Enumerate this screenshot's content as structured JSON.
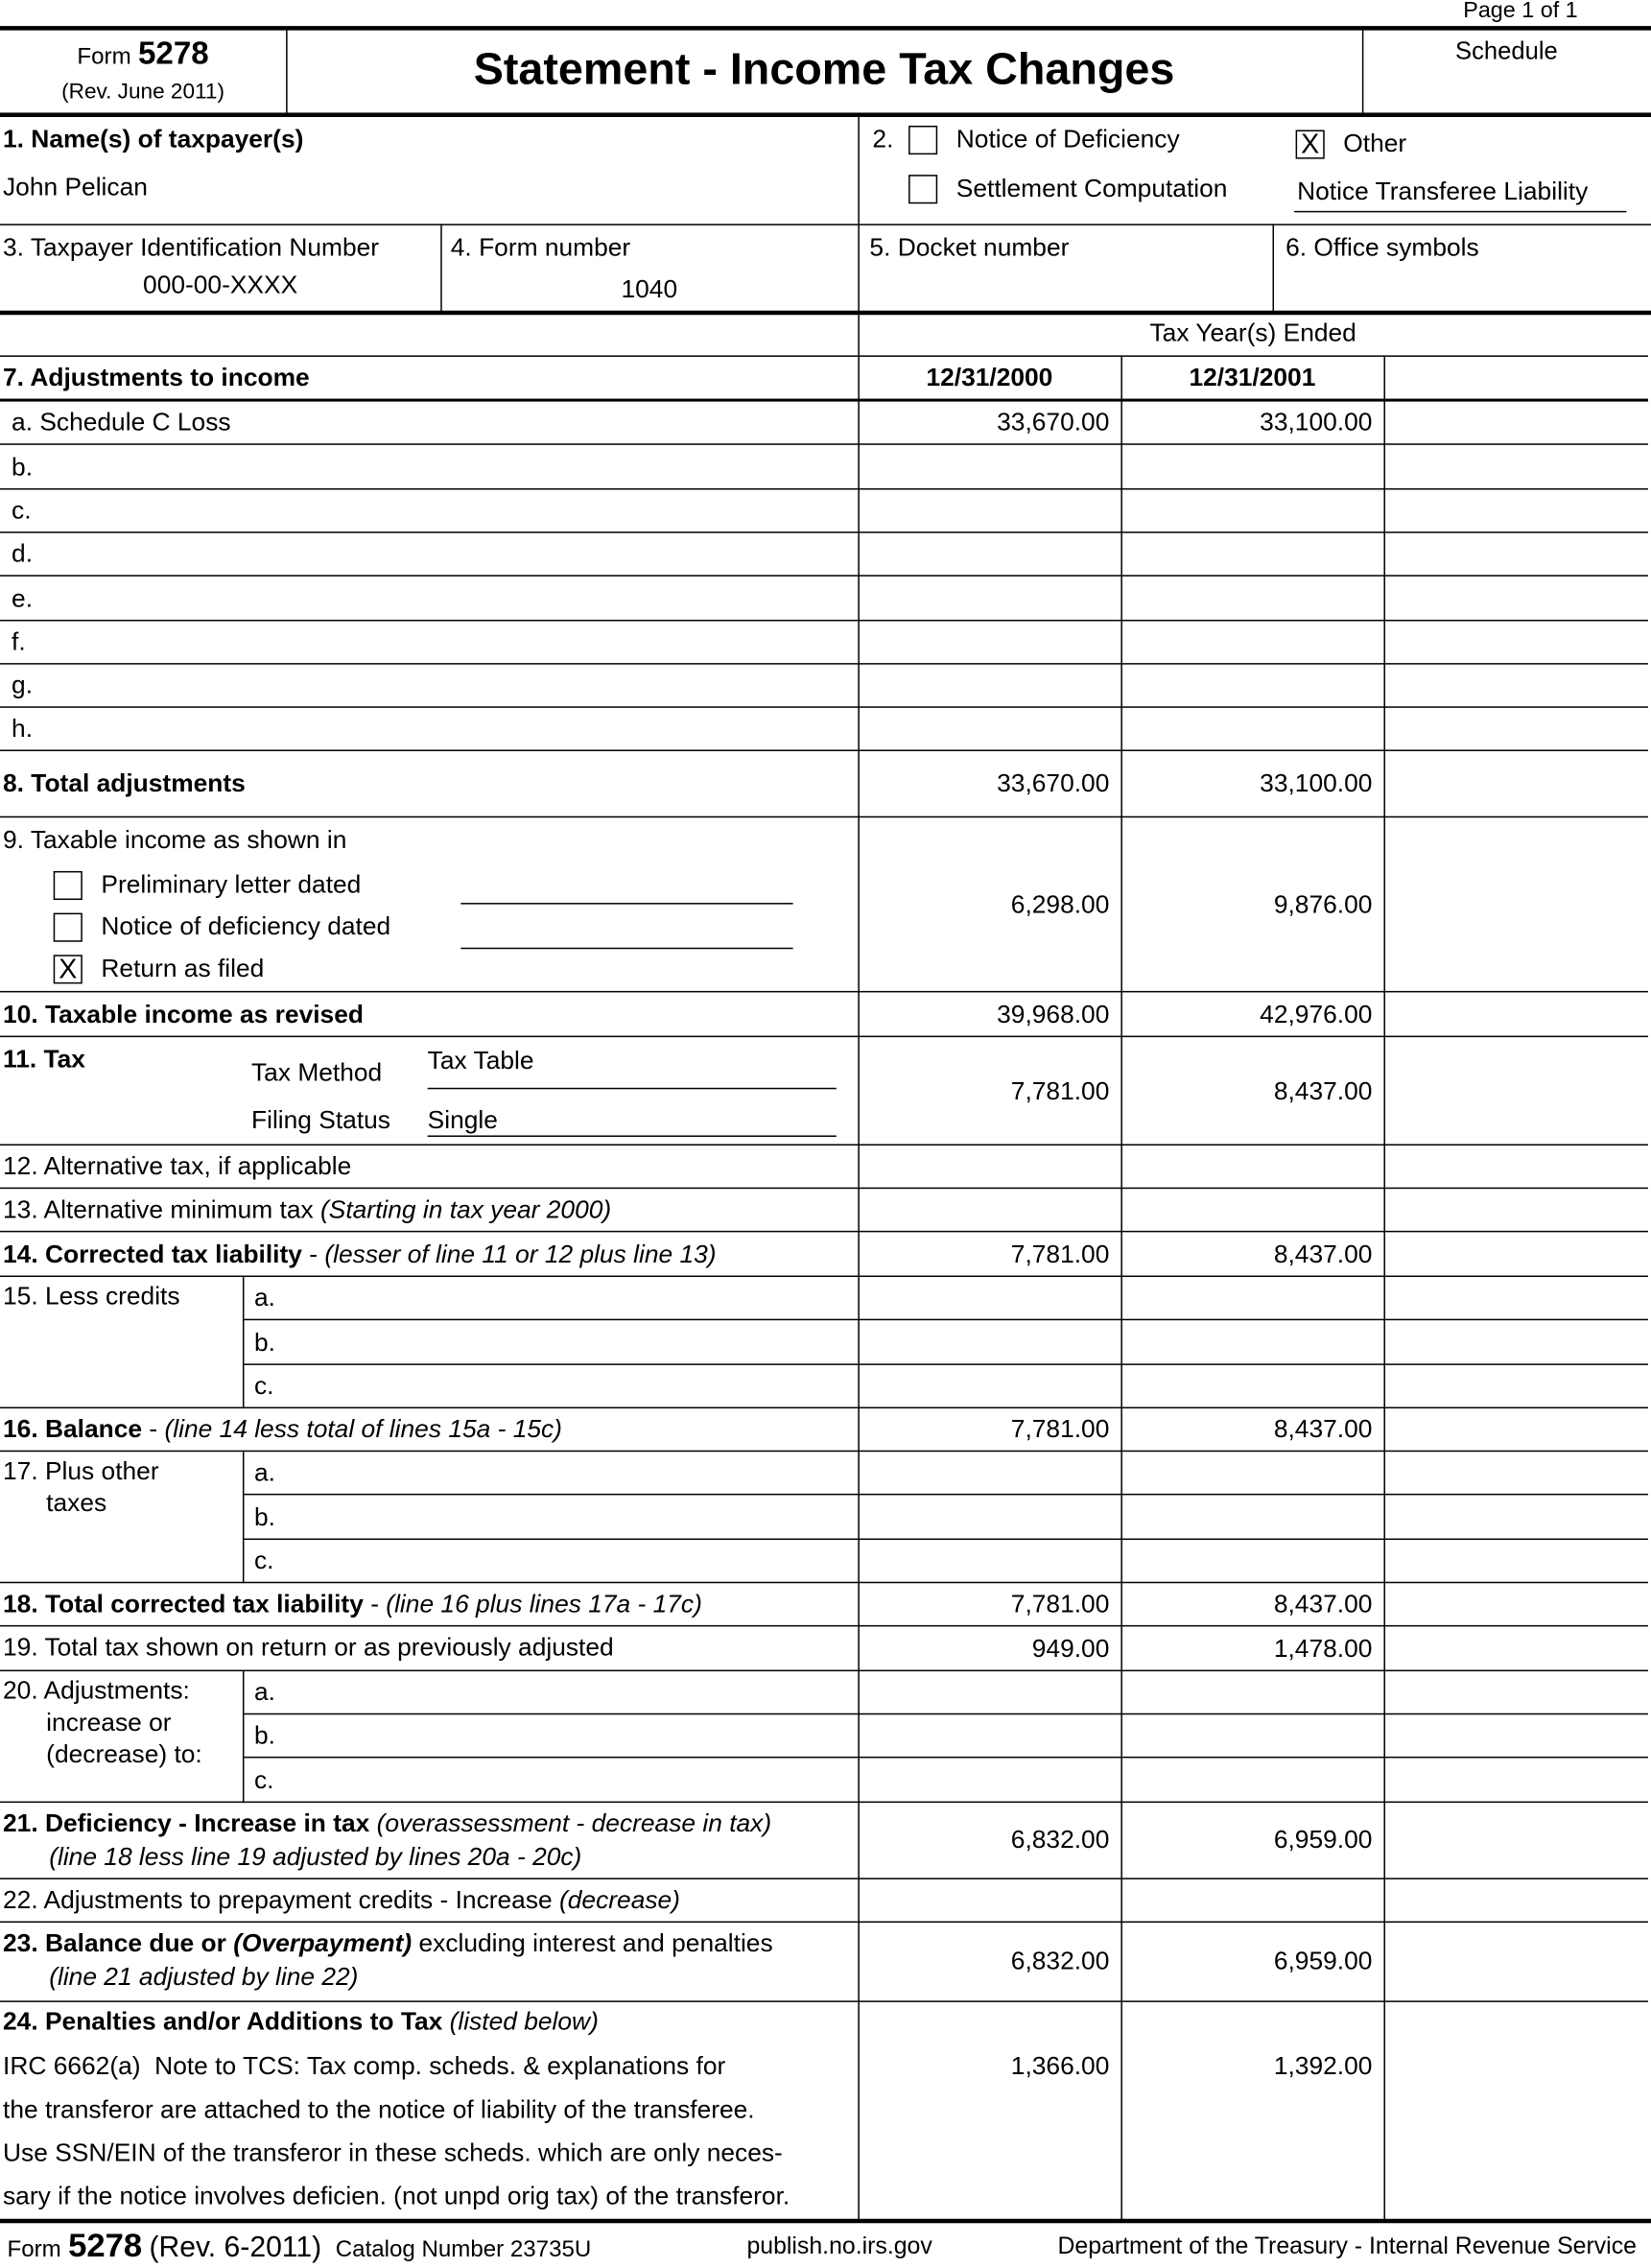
{
  "page_label": "Page 1 of 1",
  "header": {
    "form_word": "Form",
    "form_number": "5278",
    "revision": "(Rev. June 2011)",
    "title": "Statement - Income Tax Changes",
    "schedule_label": "Schedule"
  },
  "taxpayer": {
    "label": "1. Name(s) of taxpayer(s)",
    "name": "John Pelican"
  },
  "notice_type": {
    "number": "2.",
    "options": [
      {
        "label": "Notice of Deficiency",
        "checked": false
      },
      {
        "label": "Settlement Computation",
        "checked": false
      },
      {
        "label": "Other",
        "checked": true
      }
    ],
    "other_text": "Notice Transferee Liability"
  },
  "tin": {
    "label": "3. Taxpayer Identification Number",
    "value": "000-00-XXXX"
  },
  "form_number": {
    "label": "4. Form number",
    "value": "1040"
  },
  "docket": {
    "label": "5. Docket number",
    "value": ""
  },
  "office": {
    "label": "6. Office symbols",
    "value": ""
  },
  "tax_years": {
    "label": "Tax Year(s) Ended",
    "years": [
      "12/31/2000",
      "12/31/2001",
      ""
    ]
  },
  "check_mark": "X",
  "adjustments": {
    "label": "7. Adjustments to income",
    "items": [
      {
        "label": "a. Schedule C Loss",
        "values": [
          "33,670.00",
          "33,100.00",
          ""
        ]
      },
      {
        "label": "b.",
        "values": [
          "",
          "",
          ""
        ]
      },
      {
        "label": "c.",
        "values": [
          "",
          "",
          ""
        ]
      },
      {
        "label": "d.",
        "values": [
          "",
          "",
          ""
        ]
      },
      {
        "label": "e.",
        "values": [
          "",
          "",
          ""
        ]
      },
      {
        "label": "f.",
        "values": [
          "",
          "",
          ""
        ]
      },
      {
        "label": "g.",
        "values": [
          "",
          "",
          ""
        ]
      },
      {
        "label": "h.",
        "values": [
          "",
          "",
          ""
        ]
      }
    ]
  },
  "lines": [
    {
      "label": [
        [
          {
            "t": "8. Total adjustments",
            "s": "b"
          }
        ]
      ],
      "values": [
        "33,670.00",
        "33,100.00",
        ""
      ]
    },
    {
      "label": [
        [
          {
            "t": "9. Taxable income as shown in",
            "s": ""
          }
        ]
      ],
      "options": [
        {
          "label": "Preliminary letter dated",
          "checked": false,
          "date": ""
        },
        {
          "label": "Notice of deficiency dated",
          "checked": false,
          "date": ""
        },
        {
          "label": "Return as filed",
          "checked": true
        }
      ],
      "values": [
        "6,298.00",
        "9,876.00",
        ""
      ]
    },
    {
      "label": [
        [
          {
            "t": "10. Taxable income as revised",
            "s": "b"
          }
        ]
      ],
      "values": [
        "39,968.00",
        "42,976.00",
        ""
      ]
    },
    {
      "label": [
        [
          {
            "t": "11. Tax",
            "s": "b"
          }
        ]
      ],
      "method_label": "Tax Method",
      "method": "Tax Table",
      "status_label": "Filing Status",
      "status": "Single",
      "values": [
        "7,781.00",
        "8,437.00",
        ""
      ]
    },
    {
      "label": [
        [
          {
            "t": "12. Alternative tax, if applicable",
            "s": ""
          }
        ]
      ],
      "values": [
        "",
        "",
        ""
      ]
    },
    {
      "label": [
        [
          {
            "t": "13. Alternative minimum tax ",
            "s": ""
          },
          {
            "t": "(Starting in tax year 2000)",
            "s": "i"
          }
        ]
      ],
      "values": [
        "",
        "",
        ""
      ]
    },
    {
      "label": [
        [
          {
            "t": "14. Corrected tax liability",
            "s": "b"
          },
          {
            "t": " - ",
            "s": ""
          },
          {
            "t": "(lesser of line 11 or 12 plus line 13)",
            "s": "i"
          }
        ]
      ],
      "values": [
        "7,781.00",
        "8,437.00",
        ""
      ]
    },
    {
      "label": [
        [
          {
            "t": "15. Less credits",
            "s": ""
          }
        ]
      ],
      "subs": [
        {
          "label": "a.",
          "values": [
            "",
            "",
            ""
          ]
        },
        {
          "label": "b.",
          "values": [
            "",
            "",
            ""
          ]
        },
        {
          "label": "c.",
          "values": [
            "",
            "",
            ""
          ]
        }
      ]
    },
    {
      "label": [
        [
          {
            "t": "16. Balance",
            "s": "b"
          },
          {
            "t": " - ",
            "s": ""
          },
          {
            "t": "(line 14 less total of lines 15a - 15c)",
            "s": "i"
          }
        ]
      ],
      "values": [
        "7,781.00",
        "8,437.00",
        ""
      ]
    },
    {
      "label": [
        [
          {
            "t": "17. Plus other",
            "s": ""
          }
        ],
        [
          {
            "t": "taxes",
            "s": ""
          }
        ]
      ],
      "subs": [
        {
          "label": "a.",
          "values": [
            "",
            "",
            ""
          ]
        },
        {
          "label": "b.",
          "values": [
            "",
            "",
            ""
          ]
        },
        {
          "label": "c.",
          "values": [
            "",
            "",
            ""
          ]
        }
      ]
    },
    {
      "label": [
        [
          {
            "t": "18. Total corrected tax liability",
            "s": "b"
          },
          {
            "t": " - ",
            "s": ""
          },
          {
            "t": "(line 16 plus lines 17a - 17c)",
            "s": "i"
          }
        ]
      ],
      "values": [
        "7,781.00",
        "8,437.00",
        ""
      ]
    },
    {
      "label": [
        [
          {
            "t": "19. Total tax shown on return or as previously adjusted",
            "s": ""
          }
        ]
      ],
      "values": [
        "949.00",
        "1,478.00",
        ""
      ]
    },
    {
      "label": [
        [
          {
            "t": "20. Adjustments:",
            "s": ""
          }
        ],
        [
          {
            "t": "increase or",
            "s": ""
          }
        ],
        [
          {
            "t": "(decrease) to:",
            "s": ""
          }
        ]
      ],
      "subs": [
        {
          "label": "a.",
          "values": [
            "",
            "",
            ""
          ]
        },
        {
          "label": "b.",
          "values": [
            "",
            "",
            ""
          ]
        },
        {
          "label": "c.",
          "values": [
            "",
            "",
            ""
          ]
        }
      ]
    },
    {
      "label": [
        [
          {
            "t": "21. Deficiency - Increase in tax",
            "s": "b"
          },
          {
            "t": " (overassessment - decrease in tax)",
            "s": "i"
          }
        ],
        [
          {
            "t": "(line 18 less line 19 adjusted by lines 20a - 20c)",
            "s": "i"
          }
        ]
      ],
      "values": [
        "6,832.00",
        "6,959.00",
        ""
      ]
    },
    {
      "label": [
        [
          {
            "t": "22. Adjustments to prepayment credits - Increase ",
            "s": ""
          },
          {
            "t": "(decrease)",
            "s": "i"
          }
        ]
      ],
      "values": [
        "",
        "",
        ""
      ]
    },
    {
      "label": [
        [
          {
            "t": "23. Balance due or ",
            "s": "b"
          },
          {
            "t": "(Overpayment)",
            "s": "b i"
          },
          {
            "t": " excluding interest and penalties",
            "s": ""
          }
        ],
        [
          {
            "t": "(line 21 adjusted by line 22)",
            "s": "i"
          }
        ]
      ],
      "values": [
        "6,832.00",
        "6,959.00",
        ""
      ]
    },
    {
      "label": [
        [
          {
            "t": "24. Penalties and/or Additions to Tax",
            "s": "b"
          },
          {
            "t": " (listed below)",
            "s": "i"
          }
        ]
      ],
      "note": [
        "IRC 6662(a)  Note to TCS: Tax comp. scheds. & explanations for",
        "the transferor are attached to the notice of liability of the transferee.",
        "Use SSN/EIN of the transferor in these scheds. which are only neces-",
        "sary if the notice involves deficien. (not unpd orig tax) of the transferor."
      ],
      "values": [
        "1,366.00",
        "1,392.00",
        ""
      ]
    }
  ],
  "footer": {
    "form_word": "Form",
    "form_number": "5278",
    "revision": "(Rev. 6-2011)",
    "catalog": "Catalog Number 23735U",
    "url": "publish.no.irs.gov",
    "department": "Department of the Treasury - Internal Revenue Service"
  }
}
